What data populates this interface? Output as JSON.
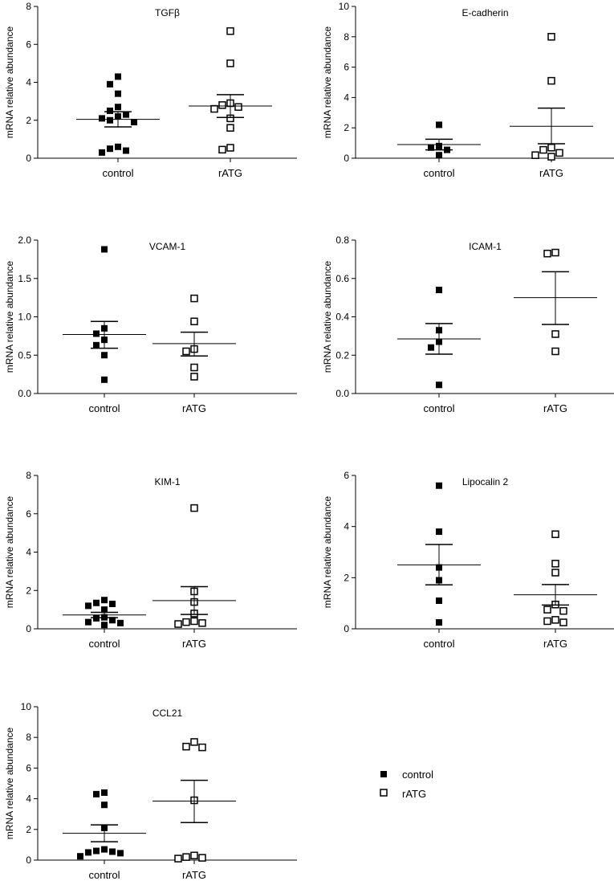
{
  "chart_data": [
    {
      "type": "scatter",
      "title": "TGFβ",
      "ylabel": "mRNA relative abundance",
      "categories": [
        "control",
        "rATG"
      ],
      "ylim": [
        0,
        8
      ],
      "yticks": [
        0,
        2,
        4,
        6,
        8
      ],
      "ytick_labels": [
        "0",
        "2",
        "4",
        "6",
        "8"
      ],
      "series": [
        {
          "name": "control",
          "values": [
            4.3,
            3.9,
            3.4,
            2.7,
            2.5,
            2.3,
            2.2,
            2.1,
            2.0,
            1.9,
            0.6,
            0.5,
            0.4,
            0.3
          ],
          "mean": 2.05,
          "sem_low": 1.65,
          "sem_high": 2.45
        },
        {
          "name": "rATG",
          "values": [
            6.7,
            5.0,
            2.9,
            2.8,
            2.7,
            2.6,
            2.1,
            1.6,
            0.55,
            0.45
          ],
          "mean": 2.75,
          "sem_low": 2.15,
          "sem_high": 3.35
        }
      ]
    },
    {
      "type": "scatter",
      "title": "E-cadherin",
      "ylabel": "mRNA relative abundance",
      "categories": [
        "control",
        "rATG"
      ],
      "ylim": [
        0,
        10
      ],
      "yticks": [
        0,
        2,
        4,
        6,
        8,
        10
      ],
      "ytick_labels": [
        "0",
        "2",
        "4",
        "6",
        "8",
        "10"
      ],
      "series": [
        {
          "name": "control",
          "values": [
            2.2,
            0.8,
            0.7,
            0.55,
            0.2
          ],
          "mean": 0.9,
          "sem_low": 0.55,
          "sem_high": 1.25
        },
        {
          "name": "rATG",
          "values": [
            8.0,
            5.1,
            0.7,
            0.55,
            0.35,
            0.2,
            0.1
          ],
          "mean": 2.1,
          "sem_low": 0.95,
          "sem_high": 3.3
        }
      ]
    },
    {
      "type": "scatter",
      "title": "VCAM-1",
      "ylabel": "mRNA relative abundance",
      "categories": [
        "control",
        "rATG"
      ],
      "ylim": [
        0,
        2.0
      ],
      "yticks": [
        0,
        0.5,
        1.0,
        1.5,
        2.0
      ],
      "ytick_labels": [
        "0.0",
        "0.5",
        "1.0",
        "1.5",
        "2.0"
      ],
      "series": [
        {
          "name": "control",
          "values": [
            1.88,
            0.85,
            0.78,
            0.7,
            0.63,
            0.5,
            0.18
          ],
          "mean": 0.77,
          "sem_low": 0.59,
          "sem_high": 0.94
        },
        {
          "name": "rATG",
          "values": [
            1.24,
            0.94,
            0.58,
            0.55,
            0.34,
            0.22
          ],
          "mean": 0.65,
          "sem_low": 0.49,
          "sem_high": 0.8
        }
      ]
    },
    {
      "type": "scatter",
      "title": "ICAM-1",
      "ylabel": "mRNA relative abundance",
      "categories": [
        "control",
        "rATG"
      ],
      "ylim": [
        0,
        0.8
      ],
      "yticks": [
        0,
        0.2,
        0.4,
        0.6,
        0.8
      ],
      "ytick_labels": [
        "0.0",
        "0.2",
        "0.4",
        "0.6",
        "0.8"
      ],
      "series": [
        {
          "name": "control",
          "values": [
            0.54,
            0.33,
            0.27,
            0.24,
            0.045
          ],
          "mean": 0.285,
          "sem_low": 0.205,
          "sem_high": 0.365
        },
        {
          "name": "rATG",
          "values": [
            0.73,
            0.735,
            0.31,
            0.22
          ],
          "mean": 0.5,
          "sem_low": 0.36,
          "sem_high": 0.635
        }
      ]
    },
    {
      "type": "scatter",
      "title": "KIM-1",
      "ylabel": "mRNA relative abundance",
      "categories": [
        "control",
        "rATG"
      ],
      "ylim": [
        0,
        8
      ],
      "yticks": [
        0,
        2,
        4,
        6,
        8
      ],
      "ytick_labels": [
        "0",
        "2",
        "4",
        "6",
        "8"
      ],
      "series": [
        {
          "name": "control",
          "values": [
            1.5,
            1.35,
            1.3,
            1.2,
            1.0,
            0.6,
            0.55,
            0.45,
            0.35,
            0.3,
            0.2
          ],
          "mean": 0.72,
          "sem_low": 0.58,
          "sem_high": 0.86
        },
        {
          "name": "rATG",
          "values": [
            6.3,
            1.95,
            1.4,
            0.8,
            0.4,
            0.35,
            0.3,
            0.25
          ],
          "mean": 1.47,
          "sem_low": 0.75,
          "sem_high": 2.2
        }
      ]
    },
    {
      "type": "scatter",
      "title": "Lipocalin 2",
      "ylabel": "mRNA relative abundance",
      "categories": [
        "control",
        "rATG"
      ],
      "ylim": [
        0,
        6
      ],
      "yticks": [
        0,
        2,
        4,
        6
      ],
      "ytick_labels": [
        "0",
        "2",
        "4",
        "6"
      ],
      "series": [
        {
          "name": "control",
          "values": [
            5.6,
            3.8,
            2.4,
            1.9,
            1.1,
            0.25
          ],
          "mean": 2.5,
          "sem_low": 1.72,
          "sem_high": 3.3
        },
        {
          "name": "rATG",
          "values": [
            3.7,
            2.55,
            2.2,
            0.95,
            0.75,
            0.7,
            0.35,
            0.3,
            0.25
          ],
          "mean": 1.33,
          "sem_low": 0.93,
          "sem_high": 1.73
        }
      ]
    },
    {
      "type": "scatter",
      "title": "CCL21",
      "ylabel": "mRNA relative abundance",
      "categories": [
        "control",
        "rATG"
      ],
      "ylim": [
        0,
        10
      ],
      "yticks": [
        0,
        2,
        4,
        6,
        8,
        10
      ],
      "ytick_labels": [
        "0",
        "2",
        "4",
        "6",
        "8",
        "10"
      ],
      "series": [
        {
          "name": "control",
          "values": [
            4.4,
            4.3,
            3.6,
            2.1,
            0.7,
            0.6,
            0.55,
            0.5,
            0.45,
            0.25
          ],
          "mean": 1.75,
          "sem_low": 1.2,
          "sem_high": 2.3
        },
        {
          "name": "rATG",
          "values": [
            7.7,
            7.4,
            7.35,
            3.9,
            0.3,
            0.2,
            0.15,
            0.1
          ],
          "mean": 3.85,
          "sem_low": 2.45,
          "sem_high": 5.2
        }
      ]
    }
  ],
  "legend": {
    "items": [
      {
        "label": "control",
        "marker": "filled-square"
      },
      {
        "label": "rATG",
        "marker": "open-square"
      }
    ]
  },
  "colors": {
    "ink": "#000000",
    "background": "#ffffff"
  }
}
